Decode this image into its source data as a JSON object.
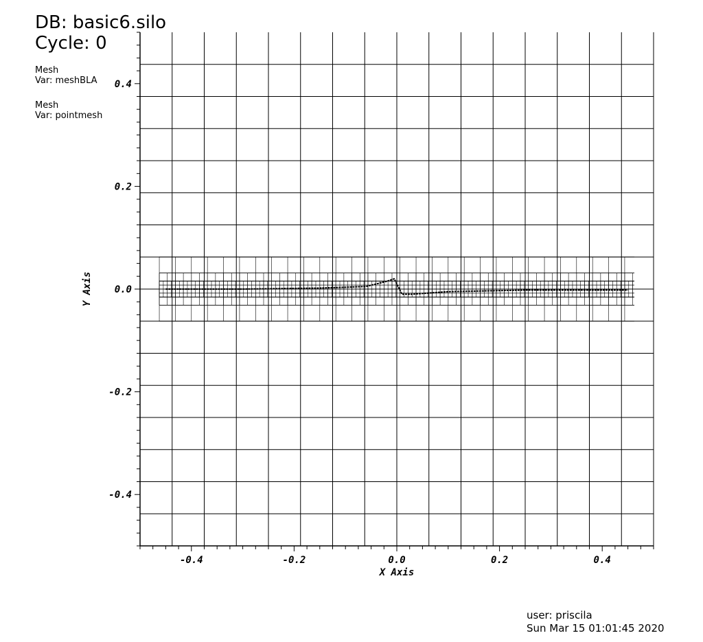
{
  "header": {
    "db_label": "DB: basic6.silo",
    "cycle_label": "Cycle: 0"
  },
  "legend": [
    {
      "plot": "Mesh",
      "var": "Var: meshBLA"
    },
    {
      "plot": "Mesh",
      "var": "Var: pointmesh"
    }
  ],
  "footer": {
    "user": "user: priscila",
    "timestamp": "Sun Mar 15 01:01:45 2020"
  },
  "chart_data": {
    "type": "mesh",
    "xlabel": "X Axis",
    "ylabel": "Y Axis",
    "xlim": [
      -0.5,
      0.5
    ],
    "ylim": [
      -0.5,
      0.5
    ],
    "x_ticks": [
      "-0.4",
      "-0.2",
      "0.0",
      "0.2",
      "0.4"
    ],
    "x_tick_values": [
      -0.4,
      -0.2,
      0.0,
      0.2,
      0.4
    ],
    "y_ticks": [
      "0.4",
      "0.2",
      "0.0",
      "-0.2",
      "-0.4"
    ],
    "y_tick_values": [
      0.4,
      0.2,
      0.0,
      -0.2,
      -0.4
    ],
    "coarse_grid_spacing": 0.0625,
    "refined_band": {
      "x": [
        -0.4625,
        0.4625
      ],
      "y": [
        -0.0625,
        0.0625
      ]
    },
    "interface_curve": [
      [
        -0.45,
        0.0
      ],
      [
        -0.3,
        0.0
      ],
      [
        -0.15,
        0.002
      ],
      [
        -0.06,
        0.005
      ],
      [
        -0.02,
        0.015
      ],
      [
        -0.005,
        0.02
      ],
      [
        0.005,
        0.0
      ],
      [
        0.01,
        -0.01
      ],
      [
        0.03,
        -0.01
      ],
      [
        0.1,
        -0.005
      ],
      [
        0.25,
        -0.002
      ],
      [
        0.45,
        -0.002
      ]
    ],
    "grid": true,
    "line_color": "#000000",
    "background": "#ffffff"
  }
}
